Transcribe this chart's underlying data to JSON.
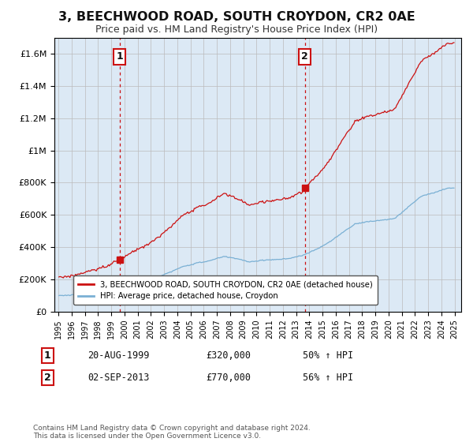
{
  "title": "3, BEECHWOOD ROAD, SOUTH CROYDON, CR2 0AE",
  "subtitle": "Price paid vs. HM Land Registry's House Price Index (HPI)",
  "title_fontsize": 11.5,
  "subtitle_fontsize": 9,
  "background_color": "#ffffff",
  "plot_bg_color": "#dce9f5",
  "grid_color": "#aaaaaa",
  "sale1_year": 1999.64,
  "sale1_price": 320000,
  "sale2_year": 2013.67,
  "sale2_price": 770000,
  "legend_label_red": "3, BEECHWOOD ROAD, SOUTH CROYDON, CR2 0AE (detached house)",
  "legend_label_blue": "HPI: Average price, detached house, Croydon",
  "footer": "Contains HM Land Registry data © Crown copyright and database right 2024.\nThis data is licensed under the Open Government Licence v3.0.",
  "ylim_max": 1700000,
  "yticks": [
    0,
    200000,
    400000,
    600000,
    800000,
    1000000,
    1200000,
    1400000,
    1600000
  ]
}
